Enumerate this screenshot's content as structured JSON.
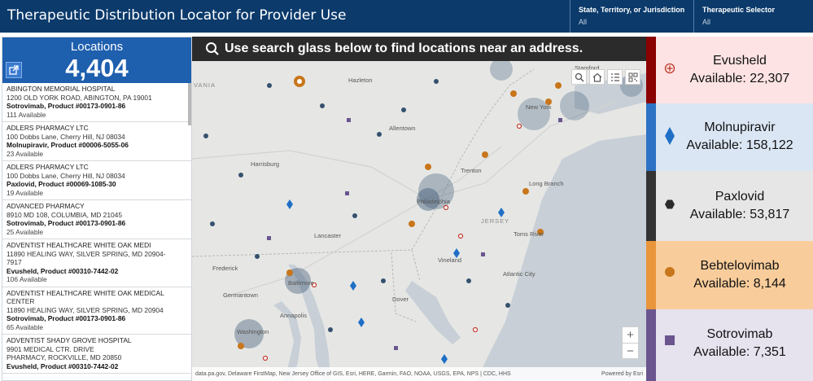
{
  "header": {
    "title": "Therapeutic Distribution Locator for Provider Use",
    "filters": [
      {
        "label": "State, Territory, or Jurisdiction",
        "value": "All"
      },
      {
        "label": "Therapeutic Selector",
        "value": "All"
      }
    ]
  },
  "locations": {
    "label": "Locations",
    "count": "4,404",
    "items": [
      {
        "name": "ABINGTON MEMORIAL HOSPITAL",
        "addr1": "1200 OLD YORK ROAD, ABINGTON, PA 19001",
        "addr2": "",
        "product": "Sotrovimab, Product #00173-0901-86",
        "available": "111 Available"
      },
      {
        "name": "ADLERS PHARMACY LTC",
        "addr1": "100 Dobbs Lane, Cherry Hill, NJ 08034",
        "addr2": "",
        "product": "Molnupiravir, Product #00006-5055-06",
        "available": "23 Available"
      },
      {
        "name": "ADLERS PHARMACY LTC",
        "addr1": "100 Dobbs Lane, Cherry Hill, NJ 08034",
        "addr2": "",
        "product": "Paxlovid, Product #00069-1085-30",
        "available": "19 Available"
      },
      {
        "name": "ADVANCED PHARMACY",
        "addr1": "8910 MD 108, COLUMBIA, MD 21045",
        "addr2": "",
        "product": "Sotrovimab, Product #00173-0901-86",
        "available": "25 Available"
      },
      {
        "name": "ADVENTIST HEALTHCARE WHITE OAK MEDI",
        "addr1": "11890 HEALING WAY, SILVER SPRING, MD 20904-",
        "addr2": "7917",
        "product": "Evusheld, Product #00310-7442-02",
        "available": "106 Available"
      },
      {
        "name": "ADVENTIST HEALTHCARE WHITE OAK MEDICAL",
        "addr1": "CENTER",
        "addr2": "11890 HEALING WAY, SILVER SPRING, MD 20904",
        "product": "Sotrovimab, Product #00173-0901-86",
        "available": "65 Available"
      },
      {
        "name": "ADVENTIST SHADY GROVE HOSPITAL",
        "addr1": "9901 MEDICAL CTR. DRIVE",
        "addr2": "PHARMACY, ROCKVILLE, MD 20850",
        "product": "Evusheld, Product #00310-7442-02",
        "available": ""
      }
    ]
  },
  "map": {
    "banner": "Use search glass below to find locations near an address.",
    "tools": [
      "search-icon",
      "home-icon",
      "list-icon",
      "qr-code-icon"
    ],
    "zoom_in": "+",
    "zoom_out": "−",
    "attribution": "data.pa.gov, Delaware FirstMap, New Jersey Office of GIS, Esri, HERE, Garmin, FAO, NOAA, USGS, EPA, NPS | CDC, HHS",
    "powered": "Powered by Esri",
    "places": [
      "VANIA",
      "Hazleton",
      "Harrisburg",
      "Allentown",
      "Trenton",
      "Philadelphia",
      "Lancaster",
      "Long Branch",
      "Toms River",
      "Frederick",
      "Baltimore",
      "Vineland",
      "Germantown",
      "Annapolis",
      "Washington",
      "Dover",
      "Atlantic City",
      "JERSEY",
      "Stamford",
      "New York"
    ]
  },
  "therapeutics": [
    {
      "name": "Evusheld",
      "available": "Available: 22,307",
      "bg": "#fde3e3",
      "bar": "#8b0000",
      "symbol": "circle-plus-icon",
      "color": "#c0392b"
    },
    {
      "name": "Molnupiravir",
      "available": "Available: 158,122",
      "bg": "#dbe6f4",
      "bar": "#2d72c4",
      "symbol": "diamond-icon",
      "color": "#1f6fc6"
    },
    {
      "name": "Paxlovid",
      "available": "Available: 53,817",
      "bg": "#e6e6e6",
      "bar": "#333333",
      "symbol": "hexagon-icon",
      "color": "#2b2b2b"
    },
    {
      "name": "Bebtelovimab",
      "available": "Available: 8,144",
      "bg": "#f9cd9b",
      "bar": "#e8953c",
      "symbol": "circle-icon",
      "color": "#c8761b"
    },
    {
      "name": "Sotrovimab",
      "available": "Available: 7,351",
      "bg": "#e6e2ee",
      "bar": "#6a558f",
      "symbol": "square-icon",
      "color": "#6a558f"
    }
  ]
}
